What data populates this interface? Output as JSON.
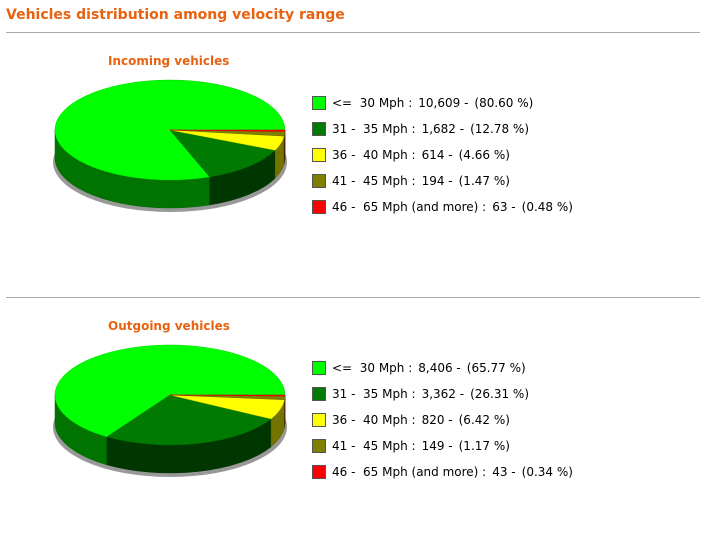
{
  "heading": "Vehicles distribution among velocity range",
  "chart_data": [
    {
      "type": "pie",
      "title": "Incoming vehicles",
      "categories": [
        "<=  30 Mph :",
        "31 -  35 Mph :",
        "36 -  40 Mph :",
        "41 -  45 Mph :",
        "46 -  65 Mph (and more) :"
      ],
      "values": [
        10609,
        1682,
        614,
        194,
        63
      ],
      "value_labels": [
        "10,609 -",
        "1,682 -",
        "614 -",
        "194 -",
        "63 -"
      ],
      "percentages": [
        80.6,
        12.78,
        4.66,
        1.47,
        0.48
      ],
      "percentage_labels": [
        "(80.60 %)",
        "(12.78 %)",
        "(4.66 %)",
        "(1.47 %)",
        "(0.48 %)"
      ],
      "colors": [
        "#00ff00",
        "#007a00",
        "#ffff00",
        "#808000",
        "#ff0000"
      ]
    },
    {
      "type": "pie",
      "title": "Outgoing vehicles",
      "categories": [
        "<=  30 Mph :",
        "31 -  35 Mph :",
        "36 -  40 Mph :",
        "41 -  45 Mph :",
        "46 -  65 Mph (and more) :"
      ],
      "values": [
        8406,
        3362,
        820,
        149,
        43
      ],
      "value_labels": [
        "8,406 -",
        "3,362 -",
        "820 -",
        "149 -",
        "43 -"
      ],
      "percentages": [
        65.77,
        26.31,
        6.42,
        1.17,
        0.34
      ],
      "percentage_labels": [
        "(65.77 %)",
        "(26.31 %)",
        "(6.42 %)",
        "(1.17 %)",
        "(0.34 %)"
      ],
      "colors": [
        "#00ff00",
        "#007a00",
        "#ffff00",
        "#808000",
        "#ff0000"
      ]
    }
  ]
}
